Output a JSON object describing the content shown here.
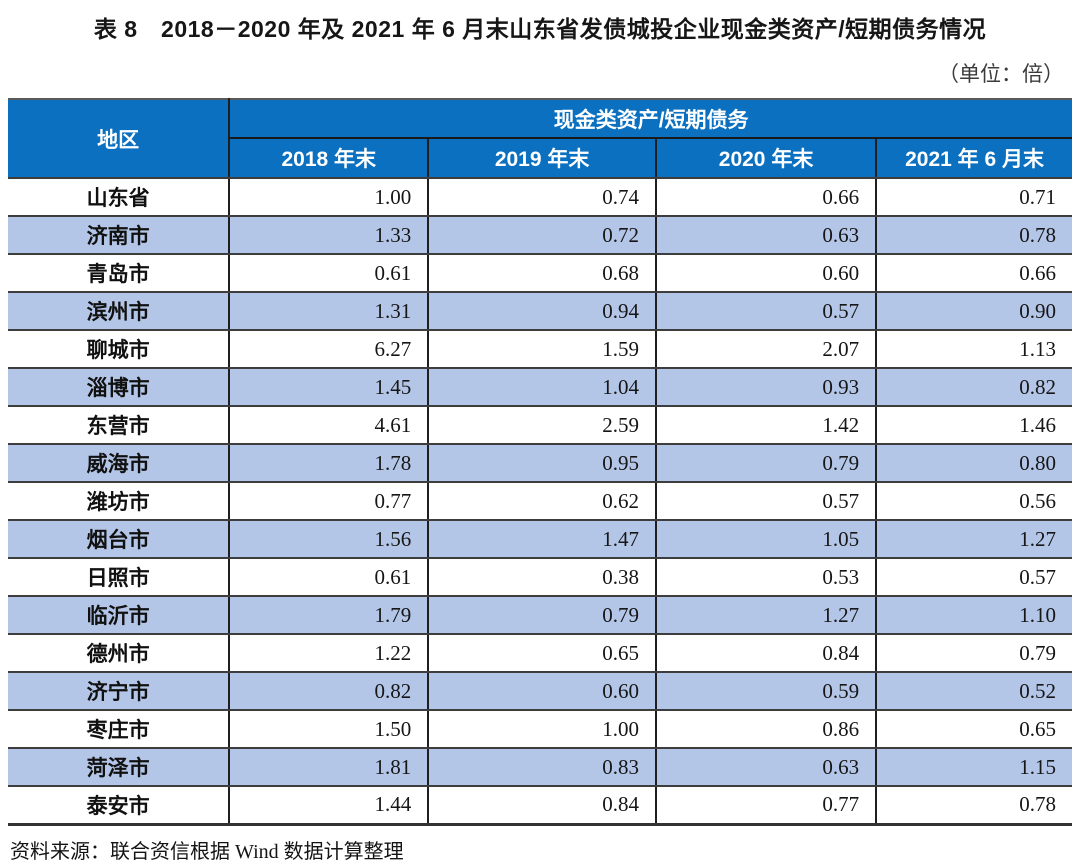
{
  "title": "表 8　2018－2020 年及 2021 年 6 月末山东省发债城投企业现金类资产/短期债务情况",
  "unit_note": "（单位：倍）",
  "source_note": "资料来源：联合资信根据 Wind 数据计算整理",
  "colors": {
    "header_bg": "#0B70C0",
    "header_text": "#FFFFFF",
    "alt_row_bg": "#B4C6E7",
    "row_border": "#3D3D3D"
  },
  "table": {
    "corner_header": "地区",
    "group_header": "现金类资产/短期债务",
    "period_headers": [
      "2018 年末",
      "2019 年末",
      "2020 年末",
      "2021 年 6 月末"
    ],
    "rows": [
      {
        "region": "山东省",
        "values": [
          "1.00",
          "0.74",
          "0.66",
          "0.71"
        ]
      },
      {
        "region": "济南市",
        "values": [
          "1.33",
          "0.72",
          "0.63",
          "0.78"
        ]
      },
      {
        "region": "青岛市",
        "values": [
          "0.61",
          "0.68",
          "0.60",
          "0.66"
        ]
      },
      {
        "region": "滨州市",
        "values": [
          "1.31",
          "0.94",
          "0.57",
          "0.90"
        ]
      },
      {
        "region": "聊城市",
        "values": [
          "6.27",
          "1.59",
          "2.07",
          "1.13"
        ]
      },
      {
        "region": "淄博市",
        "values": [
          "1.45",
          "1.04",
          "0.93",
          "0.82"
        ]
      },
      {
        "region": "东营市",
        "values": [
          "4.61",
          "2.59",
          "1.42",
          "1.46"
        ]
      },
      {
        "region": "威海市",
        "values": [
          "1.78",
          "0.95",
          "0.79",
          "0.80"
        ]
      },
      {
        "region": "潍坊市",
        "values": [
          "0.77",
          "0.62",
          "0.57",
          "0.56"
        ]
      },
      {
        "region": "烟台市",
        "values": [
          "1.56",
          "1.47",
          "1.05",
          "1.27"
        ]
      },
      {
        "region": "日照市",
        "values": [
          "0.61",
          "0.38",
          "0.53",
          "0.57"
        ]
      },
      {
        "region": "临沂市",
        "values": [
          "1.79",
          "0.79",
          "1.27",
          "1.10"
        ]
      },
      {
        "region": "德州市",
        "values": [
          "1.22",
          "0.65",
          "0.84",
          "0.79"
        ]
      },
      {
        "region": "济宁市",
        "values": [
          "0.82",
          "0.60",
          "0.59",
          "0.52"
        ]
      },
      {
        "region": "枣庄市",
        "values": [
          "1.50",
          "1.00",
          "0.86",
          "0.65"
        ]
      },
      {
        "region": "菏泽市",
        "values": [
          "1.81",
          "0.83",
          "0.63",
          "1.15"
        ]
      },
      {
        "region": "泰安市",
        "values": [
          "1.44",
          "0.84",
          "0.77",
          "0.78"
        ]
      }
    ]
  }
}
